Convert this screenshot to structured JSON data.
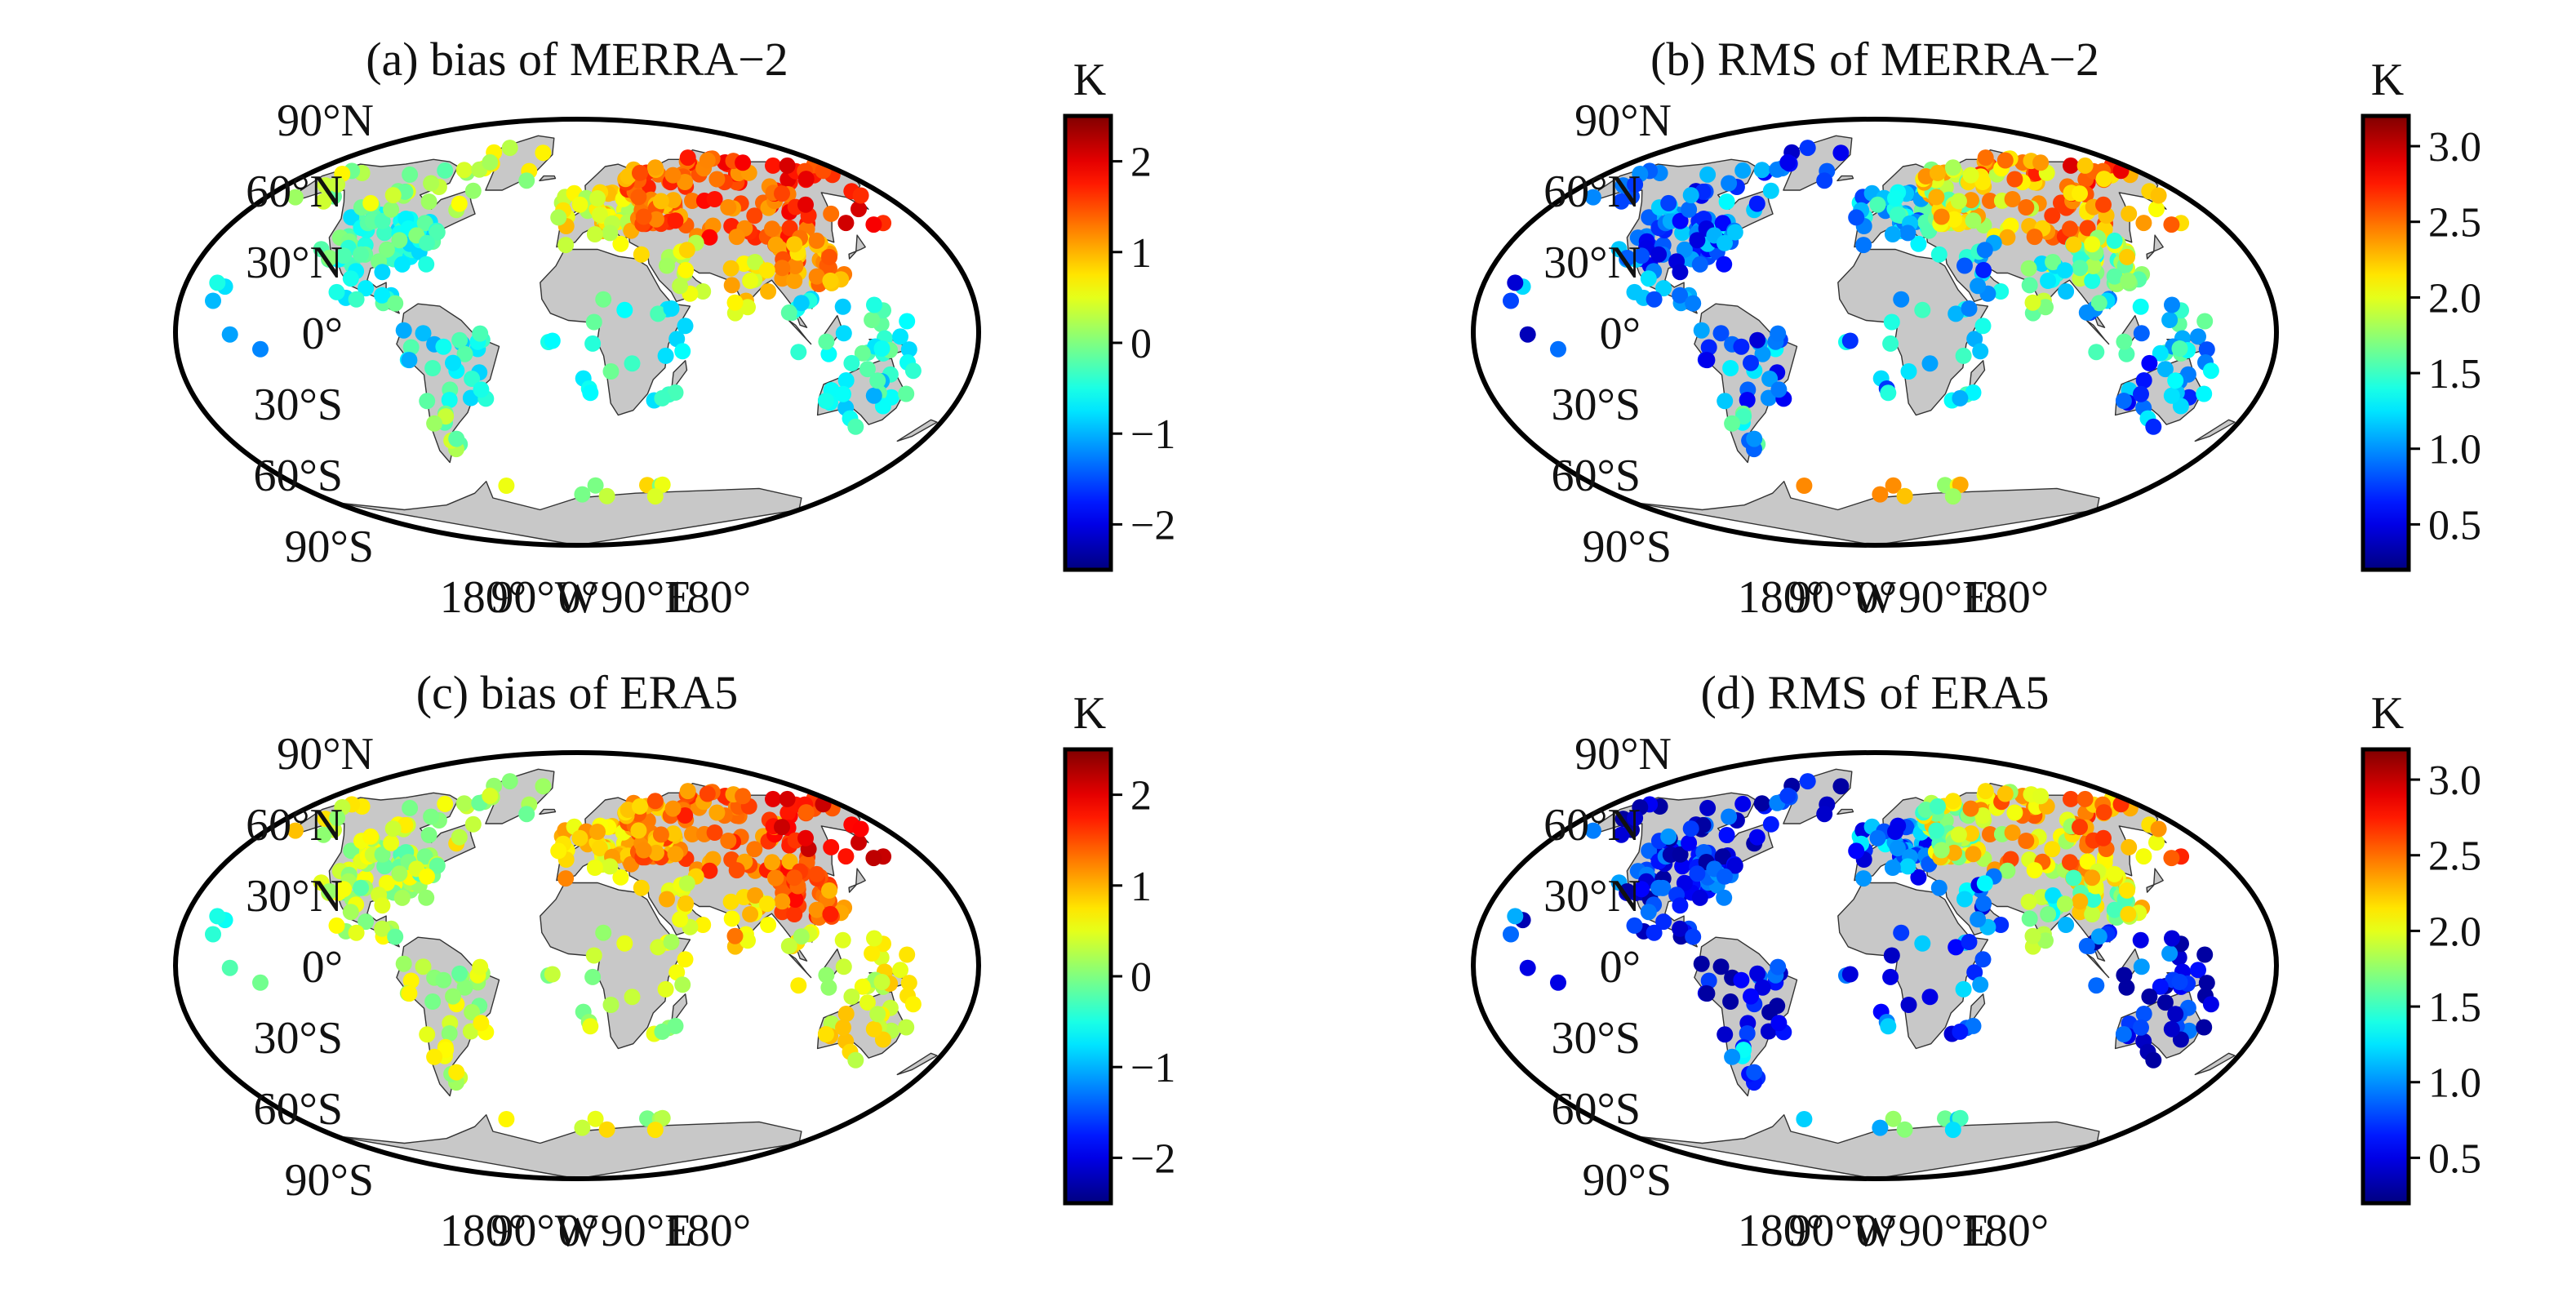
{
  "panels": [
    {
      "id": "a",
      "title": "(a) bias of MERRA−2",
      "metric": "bias",
      "dataset": "MERRA-2"
    },
    {
      "id": "b",
      "title": "(b) RMS of MERRA−2",
      "metric": "rms",
      "dataset": "MERRA-2"
    },
    {
      "id": "c",
      "title": "(c) bias of ERA5",
      "metric": "bias",
      "dataset": "ERA5"
    },
    {
      "id": "d",
      "title": "(d) RMS of ERA5",
      "metric": "rms",
      "dataset": "ERA5"
    }
  ],
  "map_labels": {
    "lat": [
      "90°N",
      "60°N",
      "30°N",
      "0°",
      "30°S",
      "60°S",
      "90°S"
    ],
    "lon": [
      "180°",
      "90°W",
      "0°",
      "90°E",
      "180°"
    ]
  },
  "colorbars": {
    "bias": {
      "unit": "K",
      "range": [
        -2.5,
        2.5
      ],
      "ticks": [
        "2",
        "1",
        "0",
        "−1",
        "−2"
      ]
    },
    "rms": {
      "unit": "K",
      "range": [
        0.2,
        3.2
      ],
      "ticks": [
        "3.0",
        "2.5",
        "2.0",
        "1.5",
        "1.0",
        "0.5"
      ]
    }
  },
  "colormap": "jet",
  "colors": {
    "land": "#c8c8c8",
    "ocean": "#ffffff",
    "outline": "#000000"
  }
}
